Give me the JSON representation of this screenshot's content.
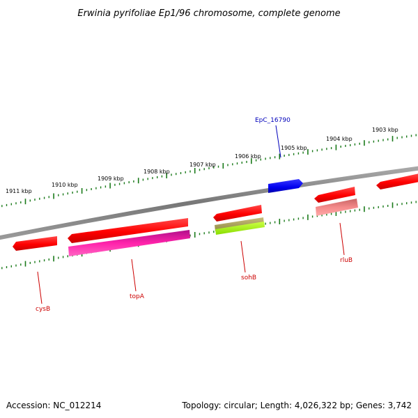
{
  "title": "Erwinia pyrifoliae Ep1/96 chromosome, complete genome",
  "footer": {
    "accession": "Accession: NC_012214",
    "topology": "Topology: circular; Length: 4,026,322 bp; Genes: 3,742"
  },
  "scale_labels": [
    "1911 kbp",
    "1910 kbp",
    "1909 kbp",
    "1908 kbp",
    "1907 kbp",
    "1906 kbp",
    "1905 kbp",
    "1904 kbp",
    "1903 kbp"
  ],
  "gene_labels": {
    "cysB": "cysB",
    "topA": "topA",
    "sohB": "sohB",
    "rluB": "rluB",
    "EpC_16790": "EpC_16790"
  },
  "colors": {
    "backbone": "#808080",
    "ticks": "#1a7a1a",
    "gene_red": "#ff0000",
    "gene_blue": "#0000ee",
    "gene_magenta": "#ee1199",
    "gene_olive": "#a8a058",
    "gene_lime": "#99ee22",
    "gene_salmon": "#ee8888",
    "label_red": "#cc0000",
    "label_blue": "#0000bb"
  }
}
